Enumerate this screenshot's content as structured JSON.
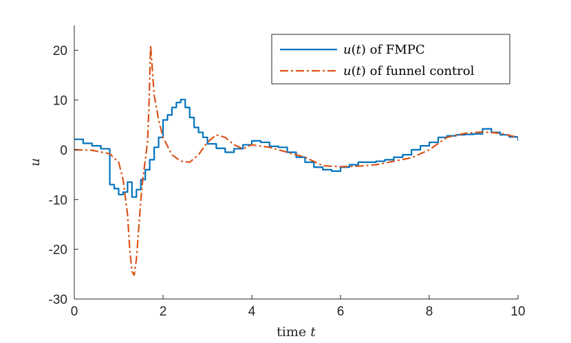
{
  "chart_data": {
    "type": "line",
    "xlabel": "time t",
    "ylabel": "u",
    "xlim": [
      0,
      10
    ],
    "ylim": [
      -30,
      25
    ],
    "xticks": [
      "0",
      "2",
      "4",
      "6",
      "8",
      "10"
    ],
    "yticks": [
      "20",
      "10",
      "0",
      "-10",
      "-20",
      "-30"
    ],
    "xtick_values": [
      0,
      2,
      4,
      6,
      8,
      10
    ],
    "ytick_values": [
      20,
      10,
      0,
      -10,
      -20,
      -30
    ],
    "grid": false,
    "legend_position": "top-right",
    "series": [
      {
        "name": "u(t) of FMPC",
        "style": "solid",
        "color": "#0072BD",
        "step": true,
        "x": [
          0.0,
          0.2,
          0.4,
          0.6,
          0.8,
          0.9,
          1.0,
          1.1,
          1.2,
          1.3,
          1.4,
          1.5,
          1.6,
          1.7,
          1.8,
          1.9,
          2.0,
          2.1,
          2.2,
          2.3,
          2.4,
          2.5,
          2.6,
          2.7,
          2.8,
          2.9,
          3.0,
          3.2,
          3.4,
          3.6,
          3.8,
          4.0,
          4.2,
          4.4,
          4.6,
          4.8,
          5.0,
          5.2,
          5.4,
          5.6,
          5.8,
          6.0,
          6.2,
          6.4,
          6.6,
          6.8,
          7.0,
          7.2,
          7.4,
          7.6,
          7.8,
          8.0,
          8.2,
          8.4,
          8.6,
          8.8,
          9.0,
          9.2,
          9.4,
          9.6,
          9.8,
          10.0
        ],
        "y": [
          2.1,
          1.3,
          0.8,
          0.2,
          -7.0,
          -7.8,
          -9.0,
          -8.5,
          -6.5,
          -9.5,
          -8.0,
          -6.0,
          -4.0,
          -2.0,
          0.5,
          2.5,
          6.0,
          7.0,
          8.5,
          9.5,
          10.1,
          8.5,
          6.5,
          4.5,
          3.5,
          2.5,
          1.2,
          0.3,
          -0.5,
          0.2,
          1.0,
          1.8,
          1.5,
          0.7,
          0.5,
          -0.5,
          -1.5,
          -2.5,
          -3.5,
          -4.0,
          -4.3,
          -3.5,
          -3.0,
          -2.5,
          -2.5,
          -2.3,
          -2.0,
          -1.5,
          -1.0,
          0.0,
          0.8,
          1.5,
          2.5,
          2.8,
          3.0,
          3.1,
          3.2,
          4.2,
          3.5,
          3.0,
          2.6,
          1.8
        ]
      },
      {
        "name": "u(t) of funnel control",
        "style": "dash-dot",
        "color": "#D95319",
        "step": false,
        "x": [
          0.0,
          0.4,
          0.8,
          1.0,
          1.1,
          1.2,
          1.25,
          1.3,
          1.35,
          1.4,
          1.45,
          1.5,
          1.55,
          1.6,
          1.65,
          1.68,
          1.72,
          1.76,
          1.8,
          1.9,
          2.0,
          2.2,
          2.4,
          2.6,
          2.8,
          3.0,
          3.2,
          3.4,
          3.6,
          3.8,
          4.0,
          4.4,
          4.8,
          5.2,
          5.6,
          6.0,
          6.4,
          6.8,
          7.2,
          7.6,
          8.0,
          8.4,
          8.8,
          9.2,
          9.6,
          10.0
        ],
        "y": [
          0.0,
          -0.1,
          -0.8,
          -2.5,
          -6.0,
          -13.0,
          -20.0,
          -24.5,
          -25.2,
          -22.0,
          -16.0,
          -10.0,
          -5.5,
          -2.0,
          1.5,
          8.0,
          21.0,
          16.0,
          11.0,
          6.0,
          2.5,
          -1.0,
          -2.3,
          -2.5,
          -1.0,
          1.5,
          3.0,
          2.5,
          1.0,
          0.2,
          1.0,
          0.5,
          -0.5,
          -1.5,
          -3.2,
          -3.4,
          -3.3,
          -3.0,
          -2.3,
          -1.6,
          0.0,
          2.5,
          3.3,
          3.6,
          3.3,
          2.5
        ]
      }
    ]
  }
}
